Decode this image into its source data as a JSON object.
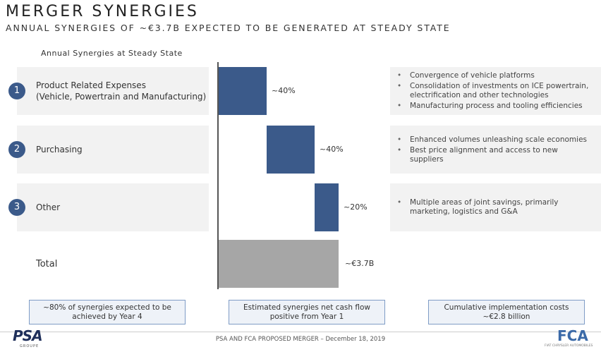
{
  "title": "MERGER SYNERGIES",
  "subtitle": "ANNUAL SYNERGIES OF ~€3.7B EXPECTED TO BE GENERATED AT STEADY STATE",
  "chart_data": {
    "type": "waterfall",
    "title": "Annual Synergies at Steady State",
    "categories": [
      "Product Related Expenses",
      "Purchasing",
      "Other"
    ],
    "category_numbers": [
      "1",
      "2",
      "3"
    ],
    "category_notes": [
      "(Vehicle, Powertrain and Manufacturing)"
    ],
    "values": [
      40,
      40,
      20
    ],
    "value_labels": [
      "~40%",
      "~40%",
      "~20%"
    ],
    "color": "#3b5a8a",
    "total_name": "Total",
    "total_label": "~€3.7B",
    "total_color": "#a6a6a6",
    "xlim": [
      0,
      100
    ]
  },
  "details": [
    [
      "Convergence of vehicle platforms",
      "Consolidation of investments on ICE powertrain, electrification and other technologies",
      "Manufacturing process and tooling efficiencies"
    ],
    [
      "Enhanced volumes unleashing scale economies",
      "Best price alignment and access to new suppliers"
    ],
    [
      "Multiple areas of joint savings, primarily marketing, logistics and G&A"
    ]
  ],
  "callouts": [
    "~80% of synergies expected to be achieved by Year 4",
    "Estimated synergies net cash flow positive from Year 1",
    "Cumulative implementation costs ~€2.8 billion"
  ],
  "footer": {
    "left_logo": "PSA",
    "left_sub": "GROUPE",
    "center": "PSA AND FCA PROPOSED MERGER – December 18, 2019",
    "right_logo": "FCA",
    "right_sub": "FIAT CHRYSLER AUTOMOBILES"
  }
}
